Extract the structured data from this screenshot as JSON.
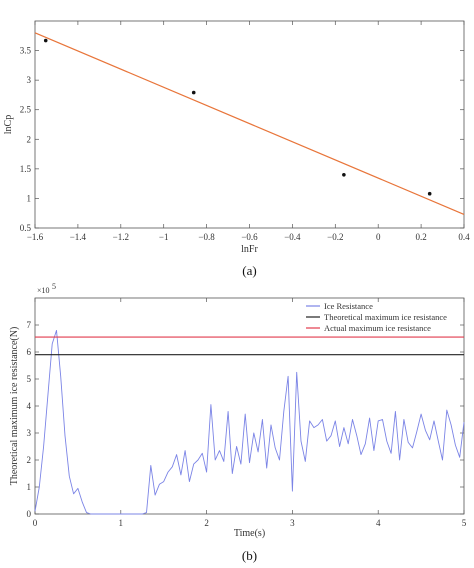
{
  "chart_data": [
    {
      "type": "scatter",
      "caption": "(a)",
      "xlabel": "lnFr",
      "ylabel": "lnCp",
      "xlim": [
        -1.6,
        0.4
      ],
      "ylim": [
        0.5,
        4.0
      ],
      "xticks": [
        -1.6,
        -1.4,
        -1.2,
        -1,
        -0.8,
        -0.6,
        -0.4,
        -0.2,
        0,
        0.2,
        0.4
      ],
      "xtick_labels": [
        "−1.6",
        "−1.4",
        "−1.2",
        "−1",
        "−0.8",
        "−0.6",
        "−0.4",
        "−0.2",
        "0",
        "0.2",
        "0.4"
      ],
      "yticks": [
        0.5,
        1,
        1.5,
        2,
        2.5,
        3,
        3.5
      ],
      "ytick_labels": [
        "0.5",
        "1",
        "1.5",
        "2",
        "2.5",
        "3",
        "3.5"
      ],
      "points": [
        {
          "x": -1.55,
          "y": 3.67
        },
        {
          "x": -0.86,
          "y": 2.79
        },
        {
          "x": -0.16,
          "y": 1.4
        },
        {
          "x": 0.24,
          "y": 1.08
        }
      ],
      "fit_line": {
        "x": [
          -1.6,
          0.4
        ],
        "y": [
          3.8,
          0.73
        ],
        "color": "#e8753a"
      },
      "point_color": "#111111"
    },
    {
      "type": "line",
      "caption": "(b)",
      "xlabel": "Time(s)",
      "ylabel": "Theoretical maximum ice resistance(N)",
      "exponent_label": "×10",
      "exponent_power": "5",
      "xlim": [
        0,
        5
      ],
      "ylim": [
        0,
        8
      ],
      "xticks": [
        0,
        1,
        2,
        3,
        4,
        5
      ],
      "xtick_labels": [
        "0",
        "1",
        "2",
        "3",
        "4",
        "5"
      ],
      "yticks": [
        0,
        1,
        2,
        3,
        4,
        5,
        6,
        7
      ],
      "ytick_labels": [
        "0",
        "1",
        "2",
        "3",
        "4",
        "5",
        "6",
        "7"
      ],
      "legend_position": "top-right",
      "series": [
        {
          "name": "Ice Resistance",
          "color": "#7b84e6",
          "x": [
            0,
            0.05,
            0.1,
            0.15,
            0.2,
            0.25,
            0.3,
            0.35,
            0.4,
            0.45,
            0.5,
            0.55,
            0.6,
            0.65,
            1.25,
            1.3,
            1.35,
            1.4,
            1.45,
            1.5,
            1.55,
            1.6,
            1.65,
            1.7,
            1.75,
            1.8,
            1.85,
            1.9,
            1.95,
            2.0,
            2.05,
            2.1,
            2.15,
            2.2,
            2.25,
            2.3,
            2.35,
            2.4,
            2.45,
            2.5,
            2.55,
            2.6,
            2.65,
            2.7,
            2.75,
            2.8,
            2.85,
            2.9,
            2.95,
            3.0,
            3.05,
            3.1,
            3.15,
            3.2,
            3.25,
            3.3,
            3.35,
            3.4,
            3.45,
            3.5,
            3.55,
            3.6,
            3.65,
            3.7,
            3.75,
            3.8,
            3.85,
            3.9,
            3.95,
            4.0,
            4.05,
            4.1,
            4.15,
            4.2,
            4.25,
            4.3,
            4.35,
            4.4,
            4.45,
            4.5,
            4.55,
            4.6,
            4.65,
            4.7,
            4.75,
            4.8,
            4.85,
            4.9,
            4.95,
            5.0
          ],
          "y": [
            0.1,
            1.0,
            2.5,
            4.4,
            6.3,
            6.8,
            5.1,
            2.9,
            1.4,
            0.75,
            0.95,
            0.45,
            0.05,
            0.0,
            0.0,
            0.05,
            1.8,
            0.7,
            1.1,
            1.2,
            1.55,
            1.75,
            2.2,
            1.45,
            2.35,
            1.2,
            1.85,
            2.0,
            2.25,
            1.55,
            4.05,
            2.0,
            2.35,
            1.95,
            3.8,
            1.5,
            2.5,
            1.85,
            3.7,
            1.9,
            3.0,
            2.3,
            3.5,
            1.7,
            3.3,
            2.45,
            2.0,
            3.8,
            5.1,
            0.85,
            5.25,
            2.7,
            1.95,
            3.45,
            3.2,
            3.3,
            3.5,
            2.7,
            2.9,
            3.45,
            2.5,
            3.2,
            2.6,
            3.5,
            2.9,
            2.2,
            2.6,
            3.55,
            2.35,
            3.45,
            3.5,
            2.7,
            2.25,
            3.8,
            2.0,
            3.5,
            2.65,
            2.45,
            3.05,
            3.7,
            3.1,
            2.75,
            3.45,
            2.7,
            2.0,
            3.85,
            3.3,
            2.55,
            2.1,
            3.4
          ]
        },
        {
          "name": "Theoretical maximum ice resistance",
          "color": "#222222",
          "x": [
            0,
            5
          ],
          "y": [
            5.9,
            5.9
          ]
        },
        {
          "name": "Actual maximum ice resistance",
          "color": "#e23b4e",
          "x": [
            0,
            5
          ],
          "y": [
            6.55,
            6.55
          ]
        }
      ]
    }
  ]
}
